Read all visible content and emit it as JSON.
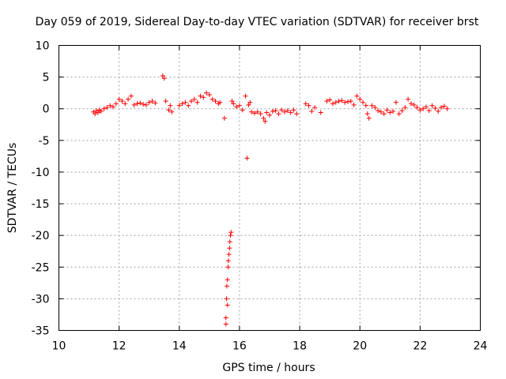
{
  "chart_data": {
    "type": "scatter",
    "title": "Day 059 of 2019, Sidereal Day-to-day VTEC variation (SDTVAR) for receiver brst",
    "xlabel": "GPS time / hours",
    "ylabel": "SDTVAR / TECUs",
    "xlim": [
      10,
      24
    ],
    "ylim": [
      -35,
      10
    ],
    "xticks": [
      10,
      12,
      14,
      16,
      18,
      20,
      22,
      24
    ],
    "yticks": [
      10,
      5,
      0,
      -5,
      -10,
      -15,
      -20,
      -25,
      -30,
      -35
    ],
    "grid": true,
    "marker": "+",
    "series_color": "#ff0000",
    "series": [
      {
        "name": "SDTVAR",
        "x": [
          11.15,
          11.2,
          11.25,
          11.3,
          11.35,
          11.4,
          11.5,
          11.6,
          11.7,
          11.8,
          11.9,
          12.0,
          12.1,
          12.2,
          12.3,
          12.4,
          12.5,
          12.6,
          12.7,
          12.8,
          12.9,
          13.0,
          13.1,
          13.2,
          13.45,
          13.5,
          13.55,
          13.65,
          13.7,
          13.75,
          14.0,
          14.1,
          14.2,
          14.3,
          14.4,
          14.5,
          14.6,
          14.7,
          14.8,
          14.9,
          15.0,
          15.1,
          15.2,
          15.3,
          15.35,
          15.5,
          15.55,
          15.6,
          15.55,
          15.57,
          15.58,
          15.6,
          15.62,
          15.63,
          15.65,
          15.67,
          15.68,
          15.7,
          15.72,
          15.75,
          15.8,
          15.9,
          16.0,
          16.1,
          16.2,
          16.25,
          16.3,
          16.35,
          16.4,
          16.5,
          16.6,
          16.7,
          16.8,
          16.85,
          16.9,
          17.0,
          17.1,
          17.2,
          17.3,
          17.4,
          17.5,
          17.6,
          17.7,
          17.8,
          17.9,
          18.2,
          18.3,
          18.4,
          18.5,
          18.7,
          18.9,
          19.0,
          19.1,
          19.2,
          19.3,
          19.4,
          19.5,
          19.6,
          19.7,
          19.8,
          19.9,
          20.0,
          20.1,
          20.2,
          20.25,
          20.3,
          20.4,
          20.5,
          20.6,
          20.7,
          20.8,
          20.9,
          21.0,
          21.1,
          21.2,
          21.3,
          21.4,
          21.5,
          21.6,
          21.7,
          21.8,
          21.9,
          22.0,
          22.1,
          22.2,
          22.3,
          22.4,
          22.5,
          22.6,
          22.7,
          22.8,
          22.9
        ],
        "y": [
          -0.5,
          -0.8,
          -0.3,
          -0.6,
          -0.2,
          -0.4,
          0.0,
          0.2,
          0.5,
          0.3,
          0.8,
          1.5,
          1.2,
          0.8,
          1.5,
          2.0,
          0.6,
          0.8,
          0.9,
          0.7,
          0.6,
          1.0,
          1.2,
          0.9,
          5.2,
          4.8,
          1.2,
          -0.2,
          0.5,
          -0.5,
          0.5,
          0.8,
          1.0,
          0.5,
          1.2,
          1.5,
          1.0,
          2.0,
          1.8,
          2.5,
          2.2,
          1.5,
          1.2,
          0.8,
          1.0,
          -1.5,
          -34.0,
          -31.0,
          -33.0,
          -30.0,
          -28.0,
          -27.0,
          -25.0,
          -24.0,
          -23.0,
          -22.0,
          -21.0,
          -20.0,
          -19.5,
          1.2,
          0.8,
          0.3,
          0.5,
          -0.2,
          2.0,
          -7.8,
          0.6,
          1.0,
          -0.5,
          -0.7,
          -0.5,
          -0.8,
          -1.5,
          -2.0,
          -0.6,
          -1.0,
          -0.4,
          -0.3,
          -0.8,
          -0.2,
          -0.5,
          -0.3,
          -0.6,
          -0.2,
          -0.8,
          0.8,
          0.5,
          -0.4,
          0.2,
          -0.6,
          1.2,
          1.4,
          0.8,
          1.0,
          1.2,
          1.3,
          1.0,
          1.1,
          1.2,
          0.6,
          2.0,
          1.5,
          1.0,
          0.5,
          -0.8,
          -1.5,
          0.5,
          0.2,
          -0.3,
          -0.5,
          -0.8,
          -0.2,
          -0.6,
          -0.4,
          1.0,
          -0.8,
          -0.3,
          0.2,
          1.5,
          0.8,
          0.6,
          0.2,
          -0.2,
          0.0,
          0.3,
          -0.3,
          0.5,
          0.1,
          -0.4,
          0.2,
          0.4,
          0.0
        ]
      }
    ]
  }
}
